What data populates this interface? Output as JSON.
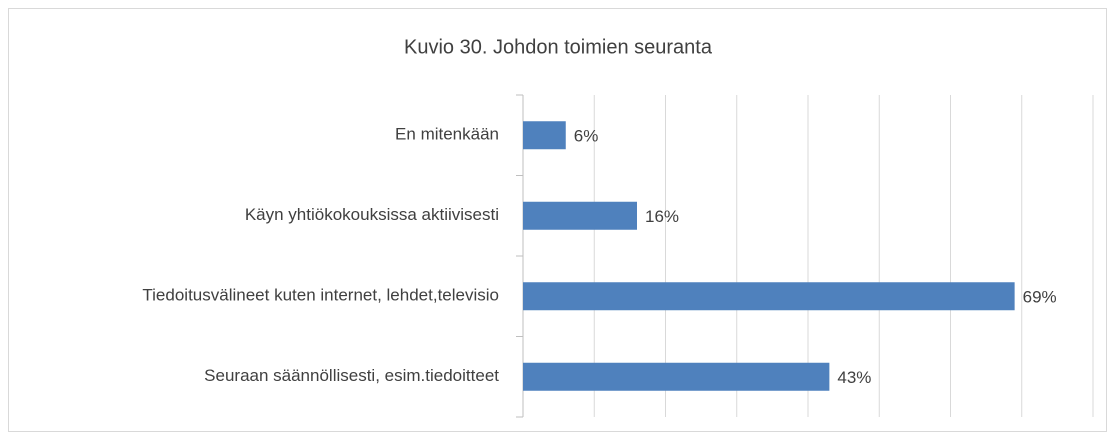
{
  "chart_data": {
    "type": "barh",
    "title": "Kuvio 30. Johdon toimien seuranta",
    "categories": [
      "En mitenkään",
      "Käyn yhtiökokouksissa aktiivisesti",
      "Tiedoitusvälineet kuten internet, lehdet,televisio",
      "Seuraan säännöllisesti, esim.tiedoitteet"
    ],
    "values": [
      6,
      16,
      69,
      43
    ],
    "value_labels": [
      "6%",
      "16%",
      "69%",
      "43%"
    ],
    "color": "#4f81bd",
    "xlim": [
      0,
      80
    ],
    "xticks": [
      0,
      10,
      20,
      30,
      40,
      50,
      60,
      70,
      80
    ],
    "grid": true
  }
}
